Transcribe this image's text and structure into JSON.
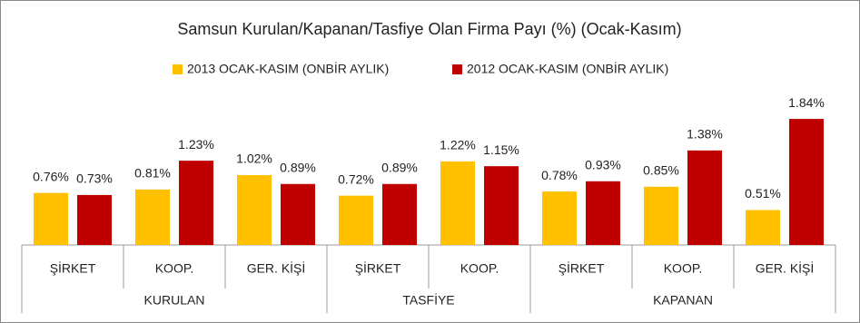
{
  "chart_data": {
    "type": "bar",
    "title": "Samsun Kurulan/Kapanan/Tasfiye Olan Firma Payı (%) (Ocak-Kasım)",
    "groups": [
      {
        "name": "KURULAN",
        "categories": [
          "ŞİRKET",
          "KOOP.",
          "GER. KİŞİ"
        ]
      },
      {
        "name": "TASFİYE",
        "categories": [
          "ŞİRKET",
          "KOOP."
        ]
      },
      {
        "name": "KAPANAN",
        "categories": [
          "ŞİRKET",
          "KOOP.",
          "GER. KİŞİ"
        ]
      }
    ],
    "series": [
      {
        "name": "2013 OCAK-KASIM (ONBİR AYLIK)",
        "color": "#FFC000",
        "values": [
          0.76,
          0.81,
          1.02,
          0.72,
          1.22,
          0.78,
          0.85,
          0.51
        ],
        "value_labels": [
          "0.76%",
          "0.81%",
          "1.02%",
          "0.72%",
          "1.22%",
          "0.78%",
          "0.85%",
          "0.51%"
        ]
      },
      {
        "name": "2012 OCAK-KASIM (ONBİR AYLIK)",
        "color": "#C00000",
        "values": [
          0.73,
          1.23,
          0.89,
          0.89,
          1.15,
          0.93,
          1.38,
          1.84
        ],
        "value_labels": [
          "0.73%",
          "1.23%",
          "0.89%",
          "0.89%",
          "1.15%",
          "0.93%",
          "1.38%",
          "1.84%"
        ]
      }
    ]
  }
}
